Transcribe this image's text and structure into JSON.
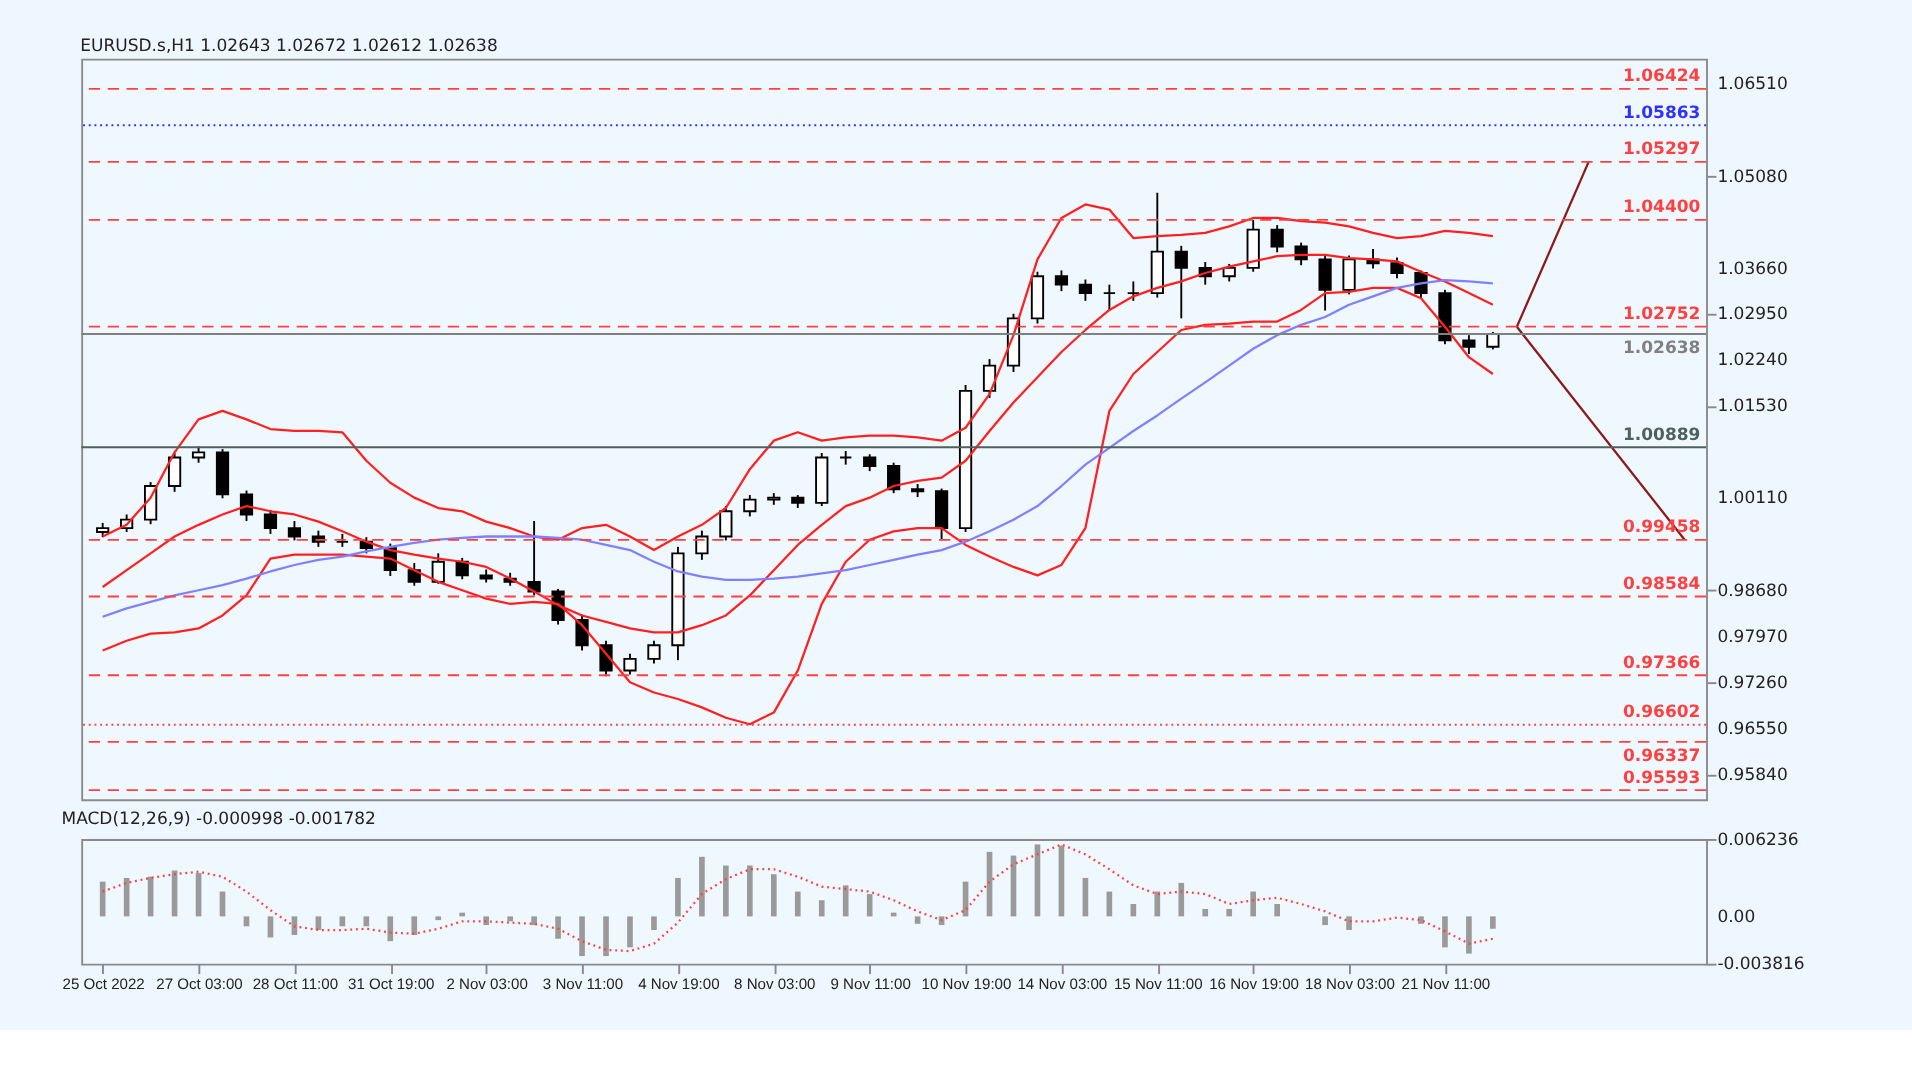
{
  "chart_data": [
    {
      "type": "candlestick",
      "title": "EURUSD.s,H1  1.02643 1.02672 1.02612 1.02638",
      "categories": [
        null,
        null,
        null,
        null,
        null,
        null,
        null,
        null,
        null,
        null,
        null,
        null,
        null,
        null,
        null,
        null,
        null,
        null,
        null,
        null,
        null,
        null,
        null,
        null,
        null,
        null,
        null,
        null,
        null,
        null,
        null,
        null,
        null,
        null,
        null,
        null,
        null,
        null,
        null,
        null,
        null,
        null,
        null,
        null,
        null,
        null,
        null,
        null,
        null,
        null,
        null,
        null,
        null,
        null,
        null,
        null,
        null,
        null,
        null,
        null,
        null,
        null,
        null,
        null,
        null,
        null,
        null
      ],
      "ohlc": [
        [
          0.9958,
          0.9972,
          0.995,
          0.9964
        ],
        [
          0.9964,
          0.9985,
          0.9958,
          0.9977
        ],
        [
          0.9977,
          1.0035,
          0.997,
          1.0029
        ],
        [
          1.0029,
          1.008,
          1.002,
          1.0073
        ],
        [
          1.0073,
          1.009,
          1.0065,
          1.0081
        ],
        [
          1.0081,
          1.0086,
          1.001,
          1.0016
        ],
        [
          1.0016,
          1.0022,
          0.9975,
          0.9985
        ],
        [
          0.9985,
          0.9992,
          0.9955,
          0.9964
        ],
        [
          0.9964,
          0.9975,
          0.9945,
          0.9951
        ],
        [
          0.9951,
          0.996,
          0.9935,
          0.9943
        ],
        [
          0.9943,
          0.9955,
          0.9935,
          0.9943
        ],
        [
          0.9943,
          0.995,
          0.9925,
          0.9933
        ],
        [
          0.9933,
          0.994,
          0.989,
          0.9899
        ],
        [
          0.9899,
          0.991,
          0.9875,
          0.9881
        ],
        [
          0.9881,
          0.9925,
          0.9878,
          0.9912
        ],
        [
          0.9912,
          0.9918,
          0.9885,
          0.9891
        ],
        [
          0.9891,
          0.99,
          0.988,
          0.9886
        ],
        [
          0.9886,
          0.9895,
          0.9875,
          0.9881
        ],
        [
          0.9881,
          0.9975,
          0.986,
          0.9866
        ],
        [
          0.9866,
          0.987,
          0.9815,
          0.9822
        ],
        [
          0.9822,
          0.983,
          0.9775,
          0.9783
        ],
        [
          0.9783,
          0.979,
          0.9735,
          0.9744
        ],
        [
          0.9744,
          0.977,
          0.9738,
          0.9762
        ],
        [
          0.9762,
          0.979,
          0.9755,
          0.9783
        ],
        [
          0.9783,
          0.9935,
          0.976,
          0.9925
        ],
        [
          0.9925,
          0.996,
          0.9915,
          0.9951
        ],
        [
          0.9951,
          0.9998,
          0.9945,
          0.999
        ],
        [
          0.999,
          1.0015,
          0.9982,
          1.0008
        ],
        [
          1.0008,
          1.0018,
          1.0,
          1.0011
        ],
        [
          1.0011,
          1.0015,
          0.9995,
          1.0003
        ],
        [
          1.0003,
          1.008,
          0.9998,
          1.0073
        ],
        [
          1.0073,
          1.0083,
          1.0062,
          1.0073
        ],
        [
          1.0073,
          1.0078,
          1.0052,
          1.006
        ],
        [
          1.006,
          1.0065,
          1.0018,
          1.0024
        ],
        [
          1.0024,
          1.0032,
          1.0012,
          1.0021
        ],
        [
          1.0021,
          1.0025,
          0.9945,
          0.9964
        ],
        [
          0.9964,
          1.0185,
          0.9958,
          1.0176
        ],
        [
          1.0176,
          1.0225,
          1.0165,
          1.0215
        ],
        [
          1.0215,
          1.0295,
          1.0205,
          1.0288
        ],
        [
          1.0288,
          1.036,
          1.028,
          1.0353
        ],
        [
          1.0353,
          1.0362,
          1.033,
          1.034
        ],
        [
          1.034,
          1.0348,
          1.0315,
          1.0327
        ],
        [
          1.0327,
          1.034,
          1.03,
          1.0327
        ],
        [
          1.0327,
          1.0345,
          1.0315,
          1.0327
        ],
        [
          1.0327,
          1.0482,
          1.032,
          1.0391
        ],
        [
          1.0391,
          1.04,
          1.0288,
          1.0366
        ],
        [
          1.0366,
          1.0375,
          1.034,
          1.0353
        ],
        [
          1.0353,
          1.0372,
          1.0345,
          1.0366
        ],
        [
          1.0366,
          1.044,
          1.036,
          1.0425
        ],
        [
          1.0425,
          1.0432,
          1.039,
          1.0399
        ],
        [
          1.0399,
          1.0405,
          1.037,
          1.0379
        ],
        [
          1.0379,
          1.0385,
          1.03,
          1.0332
        ],
        [
          1.0332,
          1.0385,
          1.0325,
          1.0379
        ],
        [
          1.0379,
          1.0395,
          1.0365,
          1.0373
        ],
        [
          1.0373,
          1.0382,
          1.035,
          1.0358
        ],
        [
          1.0358,
          1.0362,
          1.0318,
          1.0327
        ],
        [
          1.0327,
          1.0332,
          1.0248,
          1.0254
        ],
        [
          1.0254,
          1.0262,
          1.0233,
          1.0244
        ],
        [
          1.0244,
          1.0267,
          1.024,
          1.0264
        ],
        null,
        null,
        null,
        null,
        null,
        null,
        null,
        null
      ],
      "series": [
        {
          "type": "line",
          "color": "#ff2020",
          "values": [
            0.9951,
            0.9969,
            1.0011,
            1.0081,
            1.0132,
            1.0145,
            1.0132,
            1.0117,
            1.0114,
            1.0114,
            1.0112,
            1.0068,
            1.0034,
            1.0011,
            0.9995,
            0.999,
            0.9974,
            0.9964,
            0.9951,
            0.9946,
            0.9964,
            0.9969,
            0.9951,
            0.993,
            0.9951,
            0.9969,
            0.9995,
            1.0055,
            1.0099,
            1.0112,
            1.0099,
            1.0104,
            1.0107,
            1.0107,
            1.0104,
            1.0099,
            1.0119,
            1.0171,
            1.0262,
            1.0379,
            1.0443,
            1.0464,
            1.0456,
            1.0412,
            1.0415,
            1.0417,
            1.042,
            1.043,
            1.0443,
            1.0443,
            1.0438,
            1.0436,
            1.043,
            1.042,
            1.0412,
            1.0415,
            1.0423,
            1.042,
            1.0415,
            null,
            null,
            null,
            null,
            null,
            null,
            null,
            null
          ]
        },
        {
          "type": "line",
          "color": "#ff2020",
          "values": [
            0.9873,
            0.9899,
            0.9925,
            0.9951,
            0.9969,
            0.9985,
            0.9998,
            0.999,
            0.9985,
            0.9974,
            0.9959,
            0.9943,
            0.993,
            0.9923,
            0.9917,
            0.9912,
            0.9904,
            0.9886,
            0.9866,
            0.9845,
            0.9829,
            0.9819,
            0.9809,
            0.9803,
            0.9803,
            0.9814,
            0.9829,
            0.986,
            0.9899,
            0.9938,
            0.9969,
            0.9998,
            1.0011,
            1.0029,
            1.0037,
            1.0042,
            1.0068,
            1.0114,
            1.0158,
            1.0197,
            1.0236,
            1.027,
            1.0301,
            1.0322,
            1.0335,
            1.0345,
            1.0358,
            1.0368,
            1.0376,
            1.0384,
            1.0386,
            1.0386,
            1.0381,
            1.0379,
            1.0376,
            1.036,
            1.0345,
            1.0327,
            1.0309,
            null,
            null,
            null,
            null,
            null,
            null,
            null,
            null
          ]
        },
        {
          "type": "line",
          "color": "#ff2020",
          "values": [
            0.9775,
            0.979,
            0.9801,
            0.9803,
            0.9809,
            0.9829,
            0.986,
            0.9917,
            0.9923,
            0.9923,
            0.9923,
            0.992,
            0.9917,
            0.9899,
            0.9881,
            0.9868,
            0.9855,
            0.9847,
            0.985,
            0.9847,
            0.9814,
            0.977,
            0.9726,
            0.971,
            0.97,
            0.9687,
            0.9671,
            0.9661,
            0.9679,
            0.9744,
            0.9847,
            0.9912,
            0.9946,
            0.9959,
            0.9964,
            0.9964,
            0.9938,
            0.992,
            0.9904,
            0.9891,
            0.9907,
            0.9964,
            1.0145,
            1.0202,
            1.0236,
            1.027,
            1.0278,
            1.028,
            1.0283,
            1.0283,
            1.0301,
            1.0327,
            1.0329,
            1.0335,
            1.0335,
            1.0319,
            1.0275,
            1.0228,
            1.0202,
            null,
            null,
            null,
            null,
            null,
            null,
            null,
            null
          ]
        },
        {
          "type": "line",
          "color": "#8080ff",
          "values": [
            0.9827,
            0.984,
            0.985,
            0.986,
            0.9868,
            0.9876,
            0.9886,
            0.9897,
            0.9907,
            0.9915,
            0.992,
            0.9928,
            0.9935,
            0.9941,
            0.9946,
            0.9949,
            0.9951,
            0.9951,
            0.9951,
            0.9949,
            0.9946,
            0.9938,
            0.993,
            0.9912,
            0.9897,
            0.9889,
            0.9884,
            0.9884,
            0.9886,
            0.9889,
            0.9894,
            0.9899,
            0.9907,
            0.9915,
            0.9923,
            0.993,
            0.9943,
            0.9959,
            0.9977,
            0.9998,
            1.0029,
            1.0062,
            1.0088,
            1.0114,
            1.0138,
            1.0164,
            1.0189,
            1.0215,
            1.0241,
            1.0262,
            1.0278,
            1.029,
            1.0309,
            1.0322,
            1.0335,
            1.0342,
            1.0347,
            1.0345,
            1.0342,
            null,
            null,
            null,
            null,
            null,
            null,
            null,
            null
          ]
        },
        {
          "type": "line",
          "color": "#8b1a1a",
          "values": [
            null,
            null,
            null,
            null,
            null,
            null,
            null,
            null,
            null,
            null,
            null,
            null,
            null,
            null,
            null,
            null,
            null,
            null,
            null,
            null,
            null,
            null,
            null,
            null,
            null,
            null,
            null,
            null,
            null,
            null,
            null,
            null,
            null,
            null,
            null,
            null,
            null,
            null,
            null,
            null,
            null,
            null,
            null,
            null,
            null,
            null,
            null,
            null,
            null,
            null,
            null,
            null,
            null,
            null,
            null,
            null,
            null,
            null,
            null,
            1.0275,
            null,
            null,
            1.053,
            null,
            null,
            null,
            null
          ]
        },
        {
          "type": "line",
          "color": "#8b1a1a",
          "values": [
            null,
            null,
            null,
            null,
            null,
            null,
            null,
            null,
            null,
            null,
            null,
            null,
            null,
            null,
            null,
            null,
            null,
            null,
            null,
            null,
            null,
            null,
            null,
            null,
            null,
            null,
            null,
            null,
            null,
            null,
            null,
            null,
            null,
            null,
            null,
            null,
            null,
            null,
            null,
            null,
            null,
            null,
            null,
            null,
            null,
            null,
            null,
            null,
            null,
            null,
            null,
            null,
            null,
            null,
            null,
            null,
            null,
            null,
            null,
            1.0275,
            null,
            null,
            null,
            null,
            null,
            null,
            0.9946
          ]
        }
      ],
      "ylim": [
        0.9545,
        1.0689
      ],
      "yticks": [
        {
          "value": 1.0651,
          "label": "1.06510"
        },
        {
          "value": 1.0508,
          "label": "1.05080"
        },
        {
          "value": 1.0366,
          "label": "1.03660"
        },
        {
          "value": 1.0295,
          "label": "1.02950"
        },
        {
          "value": 1.0224,
          "label": "1.02240"
        },
        {
          "value": 1.0153,
          "label": "1.01530"
        },
        {
          "value": 1.0011,
          "label": "1.00110"
        },
        {
          "value": 0.9868,
          "label": "0.98680"
        },
        {
          "value": 0.9797,
          "label": "0.97970"
        },
        {
          "value": 0.9726,
          "label": "0.97260"
        },
        {
          "value": 0.9655,
          "label": "0.96550"
        },
        {
          "value": 0.9584,
          "label": "0.95840"
        }
      ],
      "ref_lines": [
        {
          "axis": "y",
          "value": 1.06424,
          "label": "1.06424",
          "color": "#ff4040",
          "line_style": "dashed"
        },
        {
          "axis": "y",
          "value": 1.05863,
          "label": "1.05863",
          "color": "#3030ff",
          "line_style": "dotted"
        },
        {
          "axis": "y",
          "value": 1.05297,
          "label": "1.05297",
          "color": "#ff4040",
          "line_style": "dashed"
        },
        {
          "axis": "y",
          "value": 1.044,
          "label": "1.04400",
          "color": "#ff4040",
          "line_style": "dashed"
        },
        {
          "axis": "y",
          "value": 1.02752,
          "label": "1.02752",
          "color": "#ff4040",
          "line_style": "dashed"
        },
        {
          "axis": "y",
          "value": 1.02638,
          "label": "1.02638",
          "color": "#808080",
          "line_style": "solid"
        },
        {
          "axis": "y",
          "value": 1.00889,
          "label": "1.00889",
          "color": "#50605e",
          "line_style": "solid"
        },
        {
          "axis": "y",
          "value": 0.99458,
          "label": "0.99458",
          "color": "#ff4040",
          "line_style": "dashed"
        },
        {
          "axis": "y",
          "value": 0.98584,
          "label": "0.98584",
          "color": "#ff4040",
          "line_style": "dashed"
        },
        {
          "axis": "y",
          "value": 0.97366,
          "label": "0.97366",
          "color": "#ff4040",
          "line_style": "dashed"
        },
        {
          "axis": "y",
          "value": 0.96602,
          "label": "0.96602",
          "color": "#ff4040",
          "line_style": "dotted"
        },
        {
          "axis": "y",
          "value": 0.96337,
          "label": "0.96337",
          "color": "#ff4040",
          "line_style": "dashed"
        },
        {
          "axis": "y",
          "value": 0.95593,
          "label": "0.95593",
          "color": "#ff4040",
          "line_style": "dashed"
        }
      ],
      "tick_labels": "y"
    },
    {
      "type": "bar",
      "title": "MACD(12,26,9) -0.000998 -0.001782",
      "categories": [
        "25 Oct 2022",
        null,
        null,
        null,
        "27 Oct 03:00",
        null,
        null,
        null,
        "28 Oct 11:00",
        null,
        null,
        null,
        "31 Oct 19:00",
        null,
        null,
        null,
        "2 Nov 03:00",
        null,
        null,
        null,
        "3 Nov 11:00",
        null,
        null,
        null,
        "4 Nov 19:00",
        null,
        null,
        null,
        "8 Nov 03:00",
        null,
        null,
        null,
        "9 Nov 11:00",
        null,
        null,
        null,
        "10 Nov 19:00",
        null,
        null,
        null,
        "14 Nov 03:00",
        null,
        null,
        null,
        "15 Nov 11:00",
        null,
        null,
        null,
        "16 Nov 19:00",
        null,
        null,
        null,
        "18 Nov 03:00",
        null,
        null,
        null,
        "21 Nov 11:00",
        null,
        null,
        null,
        null,
        null,
        null,
        null,
        null,
        null,
        null
      ],
      "series": [
        {
          "type": "bar",
          "color": "#9a9a9a",
          "values": [
            0.0028,
            0.0031,
            0.0032,
            0.0037,
            0.0035,
            0.002,
            -0.0008,
            -0.0017,
            -0.0015,
            -0.0011,
            -0.0008,
            -0.0008,
            -0.002,
            -0.0015,
            -0.0003,
            0.0003,
            -0.0007,
            -0.0004,
            -0.0007,
            -0.0018,
            -0.0032,
            -0.0032,
            -0.0025,
            -0.0011,
            0.0031,
            0.0048,
            0.0041,
            0.0041,
            0.0034,
            0.002,
            0.0013,
            0.0025,
            0.0018,
            0.0003,
            -0.0006,
            -0.0007,
            0.0028,
            0.0052,
            0.0049,
            0.0058,
            0.0057,
            0.0031,
            0.002,
            0.001,
            0.002,
            0.0027,
            0.0006,
            0.0006,
            0.002,
            0.001,
            0.0,
            -0.0007,
            -0.0011,
            0.0,
            0.0,
            -0.0006,
            -0.0025,
            -0.003,
            -0.001,
            null,
            null,
            null,
            null,
            null,
            null,
            null,
            null
          ]
        },
        {
          "type": "line",
          "color": "#ff4040",
          "line_style": "dotted",
          "values": [
            0.002,
            0.0027,
            0.0031,
            0.0034,
            0.0036,
            0.0032,
            0.002,
            0.0005,
            -0.0008,
            -0.0011,
            -0.0011,
            -0.001,
            -0.0013,
            -0.0014,
            -0.001,
            -0.0004,
            -0.0004,
            -0.0005,
            -0.0006,
            -0.001,
            -0.002,
            -0.0027,
            -0.0028,
            -0.0022,
            -0.0005,
            0.0018,
            0.003,
            0.0038,
            0.0038,
            0.0032,
            0.0024,
            0.0022,
            0.002,
            0.0013,
            0.0004,
            -0.0003,
            0.0005,
            0.0028,
            0.0042,
            0.005,
            0.0058,
            0.005,
            0.0038,
            0.0025,
            0.0018,
            0.002,
            0.0018,
            0.001,
            0.0013,
            0.0015,
            0.001,
            0.0004,
            -0.0004,
            -0.0004,
            -0.0001,
            -0.0003,
            -0.0012,
            -0.0022,
            -0.0018,
            null,
            null,
            null,
            null,
            null,
            null,
            null,
            null
          ]
        }
      ],
      "ylim": [
        -0.003816,
        0.006236
      ],
      "yticks": [
        {
          "value": 0.006236,
          "label": "0.006236"
        },
        {
          "value": 0,
          "label": "0.00"
        },
        {
          "value": -0.003816,
          "label": "-0.003816"
        }
      ]
    }
  ]
}
